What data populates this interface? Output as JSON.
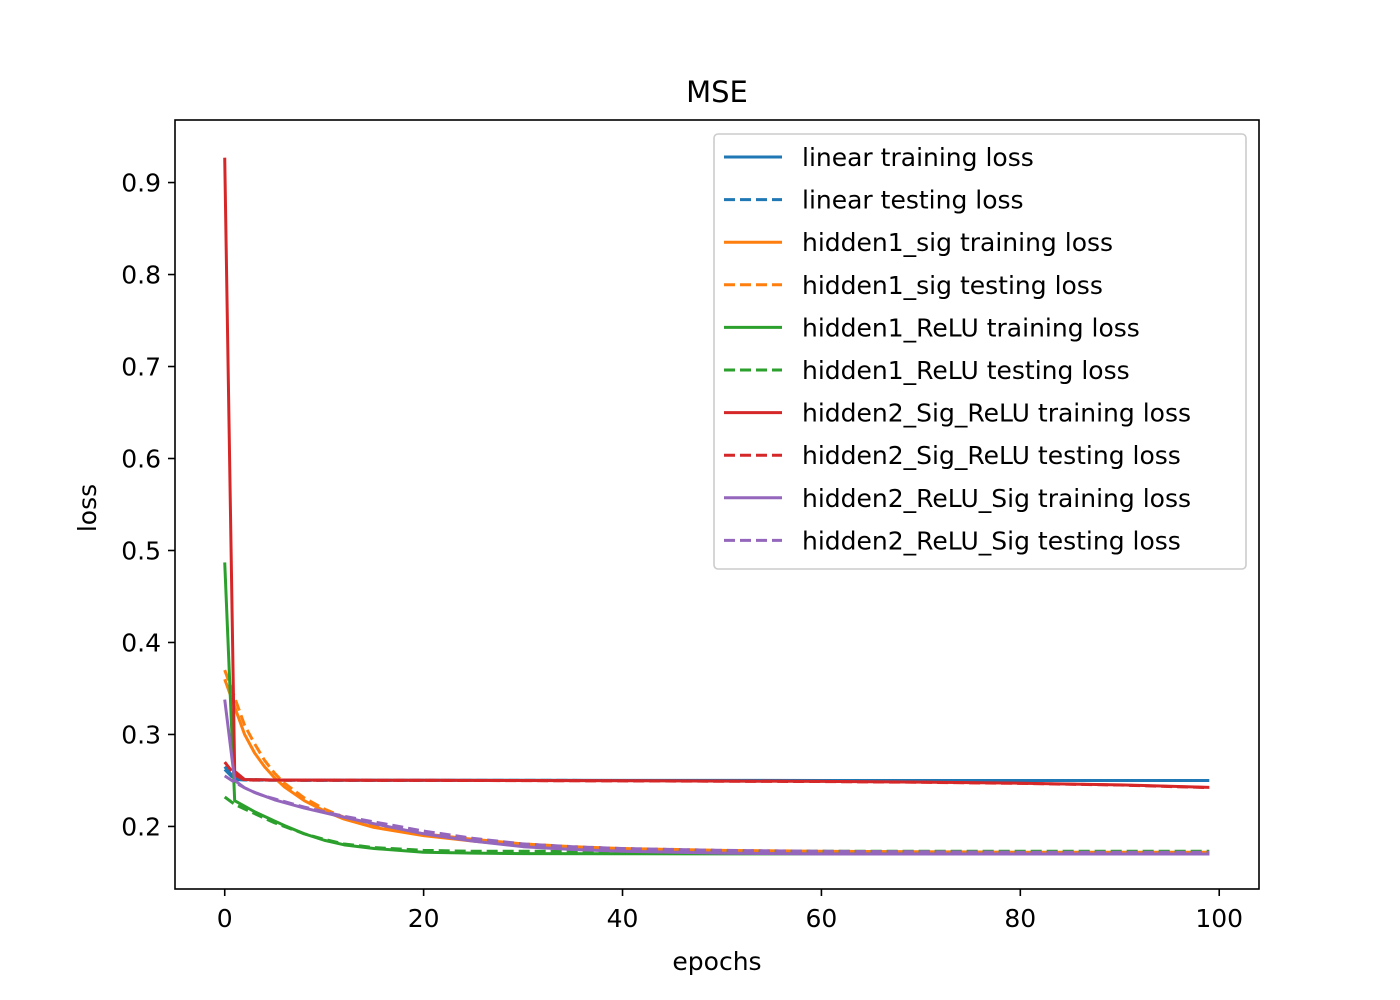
{
  "chart_data": {
    "type": "line",
    "title": "MSE",
    "xlabel": "epochs",
    "ylabel": "loss",
    "xlim": [
      -5,
      104
    ],
    "ylim": [
      0.132,
      0.968
    ],
    "grid": false,
    "legend_position": "upper right",
    "xticks": [
      0,
      20,
      40,
      60,
      80,
      100
    ],
    "yticks": [
      0.2,
      0.3,
      0.4,
      0.5,
      0.6,
      0.7,
      0.8,
      0.9
    ],
    "xtick_labels": [
      "0",
      "20",
      "40",
      "60",
      "80",
      "100"
    ],
    "ytick_labels": [
      "0.2",
      "0.3",
      "0.4",
      "0.5",
      "0.6",
      "0.7",
      "0.8",
      "0.9"
    ],
    "series": [
      {
        "name": "linear training loss",
        "color": "#1f77b4",
        "dash": false,
        "x": [
          0,
          1,
          2,
          5,
          10,
          20,
          40,
          60,
          80,
          99
        ],
        "y": [
          0.265,
          0.252,
          0.251,
          0.2505,
          0.2503,
          0.2502,
          0.2501,
          0.25,
          0.25,
          0.25
        ]
      },
      {
        "name": "linear testing loss",
        "color": "#1f77b4",
        "dash": true,
        "x": [
          0,
          1,
          2,
          5,
          10,
          20,
          40,
          60,
          80,
          99
        ],
        "y": [
          0.262,
          0.251,
          0.2505,
          0.2502,
          0.2501,
          0.2501,
          0.25,
          0.25,
          0.25,
          0.25
        ]
      },
      {
        "name": "hidden1_sig training loss",
        "color": "#ff7f0e",
        "dash": false,
        "x": [
          0,
          1,
          2,
          3,
          4,
          5,
          6,
          8,
          10,
          12,
          15,
          20,
          25,
          30,
          35,
          40,
          50,
          60,
          80,
          99
        ],
        "y": [
          0.36,
          0.33,
          0.3,
          0.28,
          0.265,
          0.253,
          0.243,
          0.228,
          0.217,
          0.208,
          0.199,
          0.19,
          0.184,
          0.179,
          0.176,
          0.174,
          0.172,
          0.171,
          0.17,
          0.17
        ]
      },
      {
        "name": "hidden1_sig testing loss",
        "color": "#ff7f0e",
        "dash": true,
        "x": [
          0,
          1,
          2,
          3,
          4,
          5,
          6,
          8,
          10,
          12,
          15,
          20,
          25,
          30,
          35,
          40,
          50,
          60,
          80,
          99
        ],
        "y": [
          0.37,
          0.34,
          0.31,
          0.29,
          0.272,
          0.258,
          0.247,
          0.231,
          0.219,
          0.21,
          0.201,
          0.192,
          0.186,
          0.181,
          0.178,
          0.176,
          0.174,
          0.173,
          0.172,
          0.172
        ]
      },
      {
        "name": "hidden1_ReLU training loss",
        "color": "#2ca02c",
        "dash": false,
        "x": [
          0,
          1,
          2,
          3,
          4,
          5,
          6,
          8,
          10,
          12,
          15,
          20,
          25,
          30,
          40,
          50,
          60,
          80,
          99
        ],
        "y": [
          0.487,
          0.228,
          0.222,
          0.216,
          0.211,
          0.206,
          0.201,
          0.192,
          0.185,
          0.18,
          0.176,
          0.172,
          0.171,
          0.1705,
          0.1703,
          0.1702,
          0.1702,
          0.1701,
          0.17
        ]
      },
      {
        "name": "hidden1_ReLU testing loss",
        "color": "#2ca02c",
        "dash": true,
        "x": [
          0,
          1,
          2,
          3,
          4,
          5,
          6,
          8,
          10,
          12,
          15,
          20,
          25,
          30,
          40,
          50,
          60,
          80,
          99
        ],
        "y": [
          0.232,
          0.224,
          0.219,
          0.214,
          0.209,
          0.204,
          0.2,
          0.192,
          0.186,
          0.181,
          0.177,
          0.174,
          0.173,
          0.173,
          0.173,
          0.173,
          0.173,
          0.173,
          0.173
        ]
      },
      {
        "name": "hidden2_Sig_ReLU training loss",
        "color": "#d62728",
        "dash": false,
        "x": [
          0,
          1,
          2,
          5,
          10,
          20,
          40,
          60,
          70,
          80,
          90,
          99
        ],
        "y": [
          0.927,
          0.26,
          0.251,
          0.2505,
          0.2503,
          0.2502,
          0.2497,
          0.249,
          0.2482,
          0.247,
          0.2452,
          0.2425
        ]
      },
      {
        "name": "hidden2_Sig_ReLU testing loss",
        "color": "#d62728",
        "dash": true,
        "x": [
          0,
          1,
          2,
          5,
          10,
          20,
          40,
          60,
          70,
          80,
          90,
          99
        ],
        "y": [
          0.27,
          0.256,
          0.2505,
          0.2503,
          0.2502,
          0.2501,
          0.2495,
          0.2488,
          0.248,
          0.2468,
          0.245,
          0.2422
        ]
      },
      {
        "name": "hidden2_ReLU_Sig training loss",
        "color": "#9467bd",
        "dash": false,
        "x": [
          0,
          1,
          2,
          3,
          4,
          5,
          6,
          8,
          10,
          12,
          15,
          20,
          25,
          30,
          35,
          40,
          50,
          60,
          80,
          99
        ],
        "y": [
          0.338,
          0.25,
          0.242,
          0.237,
          0.233,
          0.229,
          0.226,
          0.22,
          0.215,
          0.21,
          0.203,
          0.192,
          0.184,
          0.178,
          0.175,
          0.173,
          0.171,
          0.17,
          0.17,
          0.17
        ]
      },
      {
        "name": "hidden2_ReLU_Sig testing loss",
        "color": "#9467bd",
        "dash": true,
        "x": [
          0,
          1,
          2,
          3,
          4,
          5,
          6,
          8,
          10,
          12,
          15,
          20,
          25,
          30,
          35,
          40,
          50,
          60,
          80,
          99
        ],
        "y": [
          0.255,
          0.248,
          0.242,
          0.237,
          0.233,
          0.23,
          0.227,
          0.221,
          0.216,
          0.211,
          0.205,
          0.195,
          0.187,
          0.181,
          0.178,
          0.176,
          0.174,
          0.173,
          0.172,
          0.172
        ]
      }
    ]
  }
}
